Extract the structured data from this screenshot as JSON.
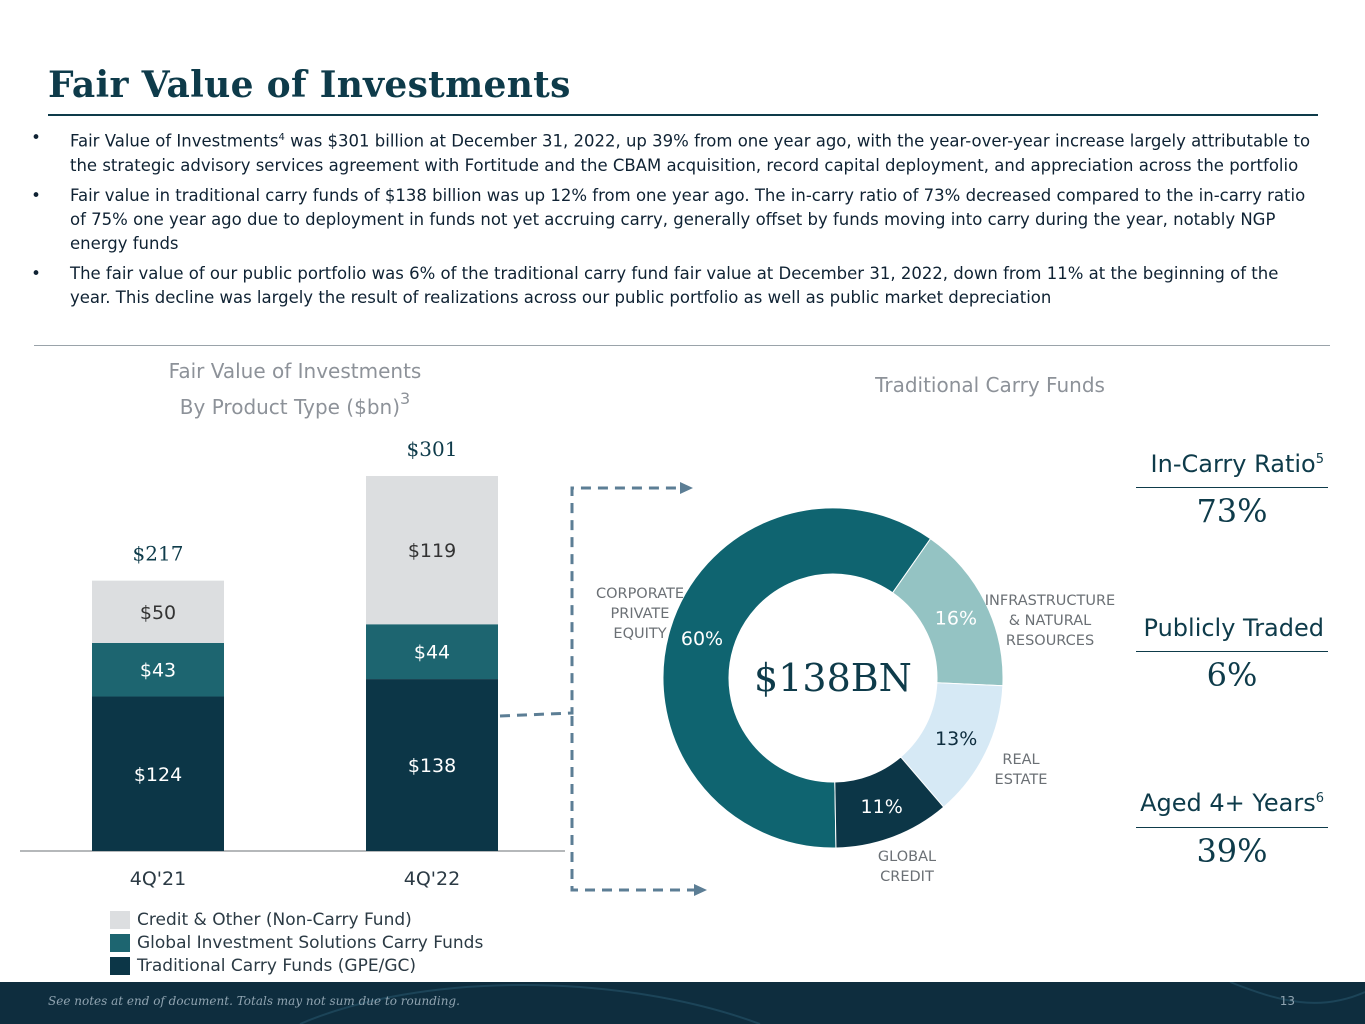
{
  "page": {
    "title": "Fair Value of Investments",
    "bullets": [
      {
        "pre": "Fair Value of Investments",
        "sup": "4",
        "post": " was $301 billion at December 31, 2022, up 39% from one year ago, with the year-over-year increase largely attributable to the strategic advisory services agreement with Fortitude and the CBAM acquisition, record capital deployment, and appreciation across the portfolio"
      },
      {
        "pre": "Fair value in traditional carry funds of $138 billion was up 12% from one year ago. The in-carry ratio of 73% decreased compared to the in-carry ratio of 75% one year ago due to deployment in funds not yet accruing carry, generally offset by funds moving into carry during the year, notably NGP energy funds",
        "sup": "",
        "post": ""
      },
      {
        "pre": "The fair value of our public portfolio was 6% of the traditional carry fund fair value at December 31, 2022, down from 11% at the beginning of the year. This decline was largely the result of realizations across our public portfolio as well as public market depreciation",
        "sup": "",
        "post": ""
      }
    ],
    "bullet_marker": "•",
    "footer_note": "See notes at end of document. Totals may not sum due to rounding.",
    "page_number": "13"
  },
  "stats": [
    {
      "label": "In-Carry Ratio",
      "sup": "5",
      "value": "73%"
    },
    {
      "label": "Publicly Traded",
      "sup": "",
      "value": "6%"
    },
    {
      "label": "Aged 4+ Years",
      "sup": "6",
      "value": "39%"
    }
  ],
  "colors": {
    "credit_other": "#dcdee0",
    "gis": "#1d6570",
    "traditional": "#0c3647",
    "donut_pe": "#0f6470",
    "donut_infra": "#94c3c3",
    "donut_re": "#d6e9f5",
    "donut_credit": "#0c3647",
    "arrow": "#5c7e95"
  },
  "chart_data": [
    {
      "type": "bar",
      "stacked": true,
      "title": "Fair Value of Investments By Product Type ($bn)",
      "title_line1": "Fair Value of Investments",
      "title_line2": "By Product Type ($bn)",
      "title_sup": "3",
      "categories": [
        "4Q'21",
        "4Q'22"
      ],
      "series": [
        {
          "name": "Traditional Carry Funds (GPE/GC)",
          "values": [
            124,
            138
          ],
          "labels": [
            "$124",
            "$138"
          ]
        },
        {
          "name": "Global Investment Solutions Carry Funds",
          "values": [
            43,
            44
          ],
          "labels": [
            "$43",
            "$44"
          ]
        },
        {
          "name": "Credit & Other (Non-Carry Fund)",
          "values": [
            50,
            119
          ],
          "labels": [
            "$50",
            "$119"
          ]
        }
      ],
      "totals": [
        217,
        301
      ],
      "total_labels": [
        "$217",
        "$301"
      ],
      "legend_order": [
        "Credit & Other (Non-Carry Fund)",
        "Global Investment Solutions Carry Funds",
        "Traditional Carry Funds (GPE/GC)"
      ],
      "ylim": [
        0,
        301
      ]
    },
    {
      "type": "pie",
      "title": "Traditional Carry Funds",
      "center_label": "$138BN",
      "slices": [
        {
          "label": "CORPORATE PRIVATE EQUITY",
          "value": 60,
          "display": "60%"
        },
        {
          "label": "INFRASTRUCTURE & NATURAL RESOURCES",
          "value": 16,
          "display": "16%"
        },
        {
          "label": "REAL ESTATE",
          "value": 13,
          "display": "13%"
        },
        {
          "label": "GLOBAL CREDIT",
          "value": 11,
          "display": "11%"
        }
      ],
      "outside_labels": [
        [
          "CORPORATE",
          "PRIVATE",
          "EQUITY"
        ],
        [
          "INFRASTRUCTURE",
          "& NATURAL",
          "RESOURCES"
        ],
        [
          "REAL",
          "ESTATE"
        ],
        [
          "GLOBAL",
          "CREDIT"
        ]
      ]
    }
  ]
}
